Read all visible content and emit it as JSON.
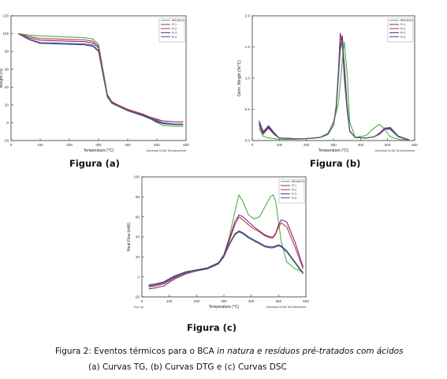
{
  "panels": [
    {
      "id": "a",
      "label": "Figura (a)",
      "footer": "Universal V4.5A TA Instruments"
    },
    {
      "id": "b",
      "label": "Figura (b)",
      "footer": "Universal V4.5A TA Instruments"
    },
    {
      "id": "c",
      "label": "Figura (c)",
      "footer": "Universal V4.5A TA Instruments",
      "exo_label": "Exo Up"
    }
  ],
  "caption": {
    "line1_prefix": "Figura 2: Eventos térmicos para o BCA ",
    "line1_italic": "in natura e resíduos pré-tratados com ácidos",
    "line2": "(a) Curvas TG, (b) Curvas DTG  e (c) Curvas DSC"
  },
  "colors": {
    "BRANCO": "#49b148",
    "R-1": "#7b2b86",
    "R-2": "#c2364a",
    "R-3": "#2d3a8a",
    "R-4": "#5a5f6e"
  },
  "chart_data": [
    {
      "type": "line",
      "title": "",
      "xlabel": "Temperature (°C)",
      "ylabel": "Weight (%)",
      "xlim": [
        0,
        600
      ],
      "ylim": [
        -20,
        120
      ],
      "xticks": [
        0,
        100,
        200,
        300,
        400,
        500,
        600
      ],
      "yticks": [
        -20,
        0,
        20,
        40,
        60,
        80,
        100,
        120
      ],
      "legend_position": "top-right",
      "series": [
        {
          "name": "BRANCO",
          "x": [
            25,
            60,
            100,
            150,
            200,
            250,
            280,
            300,
            315,
            330,
            345,
            360,
            400,
            450,
            480,
            500,
            520,
            560,
            590
          ],
          "y": [
            100,
            98.5,
            97.5,
            96.8,
            96.2,
            95.5,
            94,
            88,
            60,
            32,
            24,
            21,
            15,
            9,
            4,
            0,
            -3,
            -4,
            -4
          ]
        },
        {
          "name": "R-1",
          "x": [
            25,
            60,
            100,
            150,
            200,
            250,
            280,
            300,
            315,
            330,
            345,
            360,
            400,
            450,
            480,
            500,
            520,
            560,
            590
          ],
          "y": [
            100,
            95.5,
            92.5,
            92,
            91.5,
            91,
            89.5,
            84,
            56,
            30,
            23,
            20,
            14,
            9,
            6,
            4,
            2,
            1,
            1
          ]
        },
        {
          "name": "R-2",
          "x": [
            25,
            60,
            100,
            150,
            200,
            250,
            280,
            300,
            315,
            330,
            345,
            360,
            400,
            450,
            480,
            500,
            520,
            560,
            590
          ],
          "y": [
            100,
            97,
            94.5,
            94,
            93.5,
            93,
            91.5,
            86,
            58,
            31,
            24,
            21,
            15,
            10,
            6,
            3,
            0,
            -2,
            -2
          ]
        },
        {
          "name": "R-3",
          "x": [
            25,
            60,
            100,
            150,
            200,
            250,
            280,
            300,
            315,
            330,
            345,
            360,
            400,
            450,
            480,
            500,
            520,
            560,
            590
          ],
          "y": [
            100,
            93.5,
            89,
            88.5,
            88,
            87.5,
            86,
            80,
            54,
            29,
            22,
            19.5,
            13.5,
            8,
            4,
            1,
            -1,
            -2,
            -2
          ]
        },
        {
          "name": "R-4",
          "x": [
            25,
            60,
            100,
            150,
            200,
            250,
            280,
            300,
            315,
            330,
            345,
            360,
            400,
            450,
            480,
            500,
            520,
            560,
            590
          ],
          "y": [
            100,
            94,
            90,
            89.5,
            89,
            88.5,
            87,
            81,
            55,
            30,
            22.5,
            20,
            14,
            9,
            5,
            2,
            0,
            -1.5,
            -1.5
          ]
        }
      ]
    },
    {
      "type": "line",
      "title": "",
      "xlabel": "Temperature (°C)",
      "ylabel": "Deriv. Weight (%/°C)",
      "xlim": [
        0,
        600
      ],
      "ylim": [
        0.0,
        2.0
      ],
      "xticks": [
        0,
        100,
        200,
        300,
        400,
        500,
        600
      ],
      "yticks": [
        0.0,
        0.5,
        1.0,
        1.5,
        2.0
      ],
      "legend_position": "top-right",
      "series": [
        {
          "name": "BRANCO",
          "x": [
            25,
            40,
            60,
            80,
            100,
            150,
            200,
            250,
            280,
            300,
            310,
            318,
            325,
            333,
            340,
            350,
            360,
            380,
            420,
            450,
            470,
            490,
            510,
            540,
            580
          ],
          "y": [
            0.2,
            0.07,
            0.04,
            0.03,
            0.02,
            0.02,
            0.03,
            0.05,
            0.12,
            0.3,
            0.45,
            0.6,
            0.9,
            1.3,
            1.58,
            1.1,
            0.3,
            0.05,
            0.08,
            0.2,
            0.26,
            0.18,
            0.06,
            0.02,
            0.01
          ]
        },
        {
          "name": "R-1",
          "x": [
            25,
            40,
            60,
            80,
            100,
            150,
            200,
            250,
            280,
            300,
            310,
            318,
            325,
            333,
            340,
            350,
            360,
            380,
            420,
            450,
            470,
            490,
            510,
            540,
            580
          ],
          "y": [
            0.32,
            0.15,
            0.22,
            0.12,
            0.04,
            0.03,
            0.03,
            0.05,
            0.1,
            0.25,
            0.55,
            1.1,
            1.72,
            1.55,
            1.0,
            0.5,
            0.15,
            0.05,
            0.04,
            0.06,
            0.12,
            0.2,
            0.21,
            0.07,
            0.01
          ]
        },
        {
          "name": "R-2",
          "x": [
            25,
            40,
            60,
            80,
            100,
            150,
            200,
            250,
            280,
            300,
            310,
            318,
            325,
            333,
            340,
            350,
            360,
            380,
            420,
            450,
            470,
            490,
            510,
            540,
            580
          ],
          "y": [
            0.25,
            0.1,
            0.2,
            0.1,
            0.04,
            0.03,
            0.03,
            0.05,
            0.1,
            0.25,
            0.5,
            1.0,
            1.6,
            1.68,
            1.1,
            0.55,
            0.15,
            0.05,
            0.04,
            0.06,
            0.1,
            0.18,
            0.2,
            0.07,
            0.01
          ]
        },
        {
          "name": "R-3",
          "x": [
            25,
            40,
            60,
            80,
            100,
            150,
            200,
            250,
            280,
            300,
            310,
            318,
            325,
            333,
            340,
            350,
            360,
            380,
            420,
            450,
            470,
            490,
            510,
            540,
            580
          ],
          "y": [
            0.28,
            0.12,
            0.21,
            0.11,
            0.04,
            0.03,
            0.03,
            0.05,
            0.1,
            0.25,
            0.5,
            1.05,
            1.5,
            1.65,
            1.2,
            0.55,
            0.15,
            0.05,
            0.04,
            0.06,
            0.11,
            0.19,
            0.18,
            0.06,
            0.01
          ]
        },
        {
          "name": "R-4",
          "x": [
            25,
            40,
            60,
            80,
            100,
            150,
            200,
            250,
            280,
            300,
            310,
            318,
            325,
            333,
            340,
            350,
            360,
            380,
            420,
            450,
            470,
            490,
            510,
            540,
            580
          ],
          "y": [
            0.3,
            0.14,
            0.24,
            0.13,
            0.04,
            0.03,
            0.03,
            0.05,
            0.1,
            0.25,
            0.5,
            1.0,
            1.45,
            1.6,
            1.25,
            0.6,
            0.16,
            0.05,
            0.04,
            0.06,
            0.11,
            0.2,
            0.2,
            0.07,
            0.01
          ]
        }
      ]
    },
    {
      "type": "line",
      "title": "",
      "xlabel": "Temperature (°C)",
      "ylabel": "Heat Flow (mW)",
      "xlim": [
        0,
        600
      ],
      "ylim": [
        -20,
        100
      ],
      "xticks": [
        0,
        100,
        200,
        300,
        400,
        500,
        600
      ],
      "yticks": [
        -20,
        0,
        20,
        40,
        60,
        80,
        100
      ],
      "legend_position": "top-right",
      "series": [
        {
          "name": "BRANCO",
          "x": [
            25,
            50,
            80,
            120,
            160,
            200,
            240,
            280,
            300,
            320,
            340,
            355,
            370,
            390,
            410,
            430,
            450,
            470,
            480,
            490,
            500,
            510,
            530,
            560,
            590
          ],
          "y": [
            -10,
            -8,
            -6,
            0,
            4,
            6,
            8,
            14,
            22,
            40,
            65,
            82,
            75,
            62,
            58,
            60,
            70,
            80,
            82,
            75,
            55,
            35,
            15,
            8,
            5
          ]
        },
        {
          "name": "R-1",
          "x": [
            25,
            50,
            80,
            120,
            160,
            200,
            240,
            280,
            300,
            320,
            340,
            355,
            370,
            390,
            410,
            430,
            450,
            470,
            480,
            490,
            500,
            510,
            530,
            560,
            590
          ],
          "y": [
            -12,
            -11,
            -9,
            -2,
            3,
            6,
            9,
            14,
            22,
            38,
            55,
            62,
            60,
            55,
            50,
            46,
            42,
            40,
            40,
            44,
            52,
            57,
            55,
            35,
            10
          ]
        },
        {
          "name": "R-2",
          "x": [
            25,
            50,
            80,
            120,
            160,
            200,
            240,
            280,
            300,
            320,
            340,
            355,
            370,
            390,
            410,
            430,
            450,
            470,
            480,
            490,
            500,
            510,
            530,
            560,
            590
          ],
          "y": [
            -10,
            -9,
            -7,
            -1,
            4,
            6,
            8,
            13,
            20,
            36,
            52,
            60,
            57,
            52,
            48,
            45,
            41,
            39,
            39,
            43,
            50,
            54,
            50,
            30,
            8
          ]
        },
        {
          "name": "R-3",
          "x": [
            25,
            50,
            80,
            120,
            160,
            200,
            240,
            280,
            300,
            320,
            340,
            355,
            370,
            390,
            410,
            430,
            450,
            470,
            480,
            490,
            500,
            510,
            530,
            560,
            590
          ],
          "y": [
            -8,
            -7,
            -5,
            1,
            5,
            7,
            9,
            14,
            21,
            33,
            43,
            46,
            44,
            40,
            37,
            34,
            31,
            30,
            30,
            31,
            32,
            31,
            26,
            15,
            4
          ]
        },
        {
          "name": "R-4",
          "x": [
            25,
            50,
            80,
            120,
            160,
            200,
            240,
            280,
            300,
            320,
            340,
            355,
            370,
            390,
            410,
            430,
            450,
            470,
            480,
            490,
            500,
            510,
            530,
            560,
            590
          ],
          "y": [
            -9,
            -8,
            -6,
            0,
            4,
            6,
            8,
            13,
            20,
            32,
            42,
            45,
            43,
            39,
            36,
            33,
            30,
            29,
            29,
            30,
            31,
            30,
            25,
            14,
            3
          ]
        }
      ]
    }
  ]
}
